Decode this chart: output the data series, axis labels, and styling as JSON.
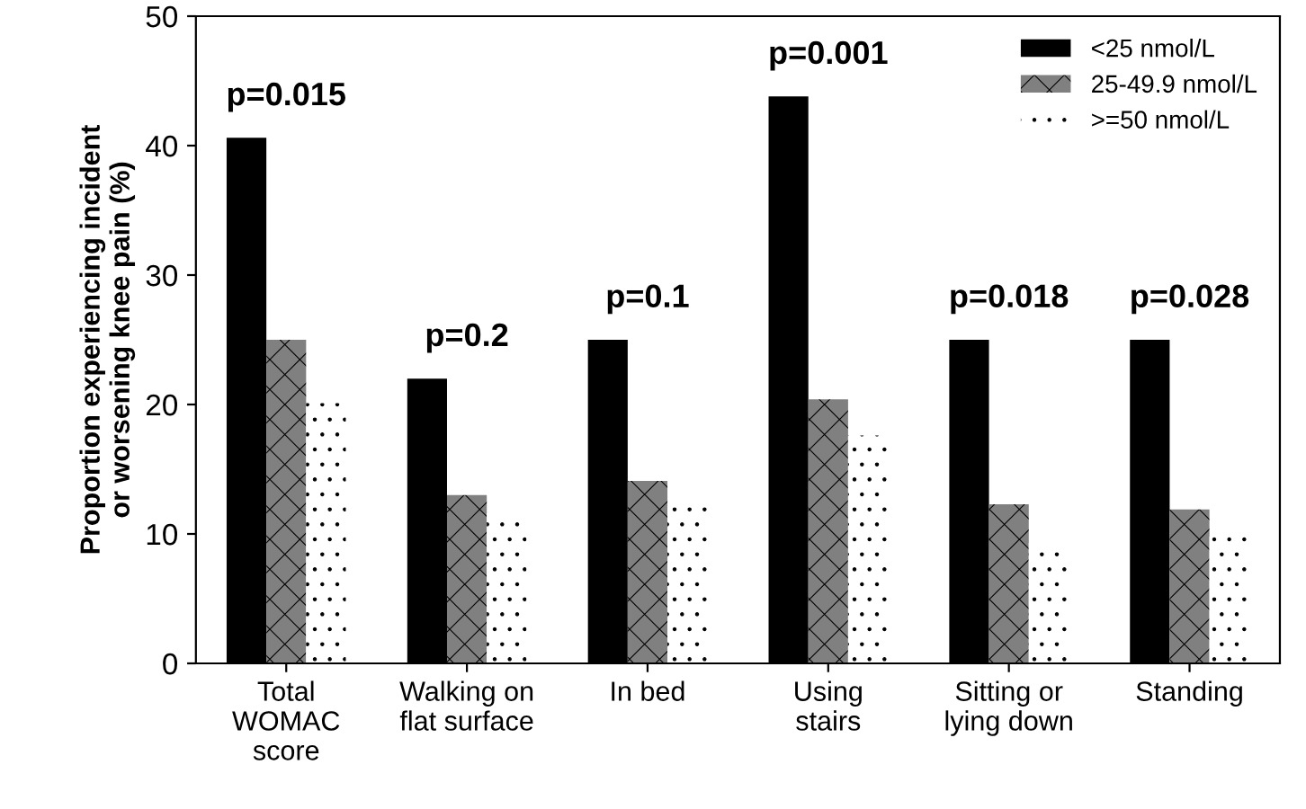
{
  "chart_data": {
    "type": "bar",
    "ylabel": "Proportion experiencing incident\nor worsening knee pain (%)",
    "categories": [
      "Total\nWOMAC\nscore",
      "Walking on\nflat surface",
      "In bed",
      "Using\nstairs",
      "Sitting or\nlying down",
      "Standing"
    ],
    "series": [
      {
        "name": "<25 nmol/L",
        "color": "#000000",
        "values": [
          40.6,
          22,
          25,
          43.8,
          25,
          25
        ]
      },
      {
        "name": "25-49.9 nmol/L",
        "color": "#808080",
        "values": [
          25,
          13,
          14.1,
          20.4,
          12.3,
          11.9
        ]
      },
      {
        "name": ">=50 nmol/L",
        "color": "#ffffff",
        "values": [
          20.1,
          11.6,
          12.1,
          17.6,
          9.3,
          9.8
        ]
      }
    ],
    "annotations": [
      "p=0.015",
      "p=0.2",
      "p=0.1",
      "p=0.001",
      "p=0.018",
      "p=0.028"
    ],
    "ylim": [
      0,
      50
    ],
    "yticks": [
      0,
      10,
      20,
      30,
      40,
      50
    ],
    "grid": false,
    "legend": "top right"
  }
}
